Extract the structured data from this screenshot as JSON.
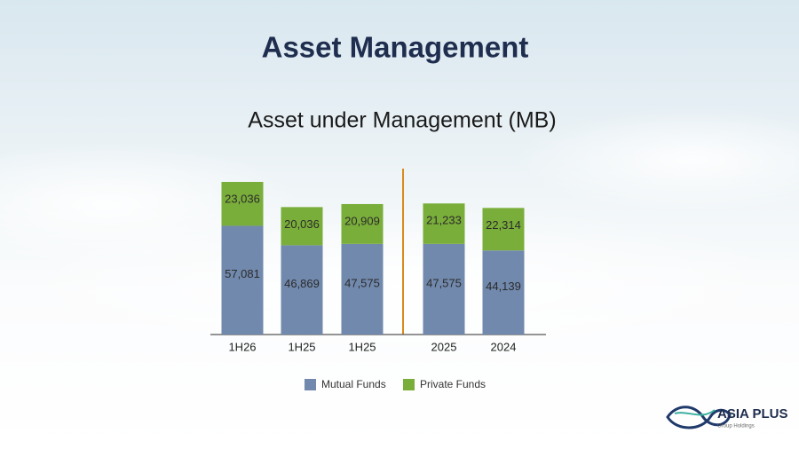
{
  "header": {
    "title": "Asset Management"
  },
  "logo": {
    "name": "ASIA PLUS",
    "subtitle": "Group Holdings"
  },
  "chart_data": {
    "type": "stacked_bar",
    "title": "Asset under Management (MB)",
    "categories": [
      "1H26",
      "1H25",
      "1H25",
      "2025",
      "2024"
    ],
    "series": [
      {
        "name": "Mutual Funds",
        "color": "#7189ad",
        "values": [
          57081,
          46869,
          47575,
          47575,
          44139
        ],
        "value_labels": [
          "57,081",
          "46,869",
          "47,575",
          "47,575",
          "44,139"
        ]
      },
      {
        "name": "Private Funds",
        "color": "#7aae3a",
        "values": [
          23036,
          20036,
          20909,
          21233,
          22314
        ],
        "value_labels": [
          "23,036",
          "20,036",
          "20,909",
          "21,233",
          "22,314"
        ]
      }
    ]
  }
}
